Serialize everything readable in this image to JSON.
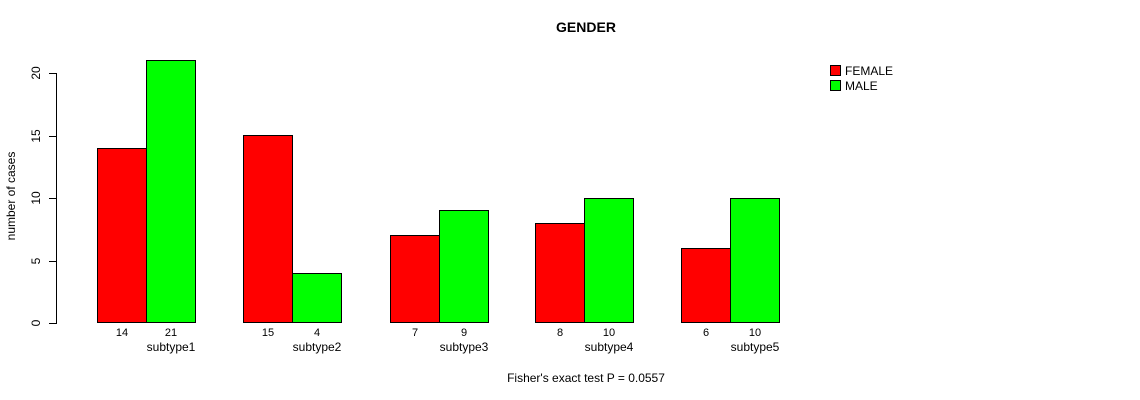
{
  "chart_data": {
    "type": "bar",
    "title": "GENDER",
    "xlabel": "",
    "ylabel": "number of cases",
    "categories": [
      "subtype1",
      "subtype2",
      "subtype3",
      "subtype4",
      "subtype5"
    ],
    "series": [
      {
        "name": "FEMALE",
        "color": "#ff0000",
        "values": [
          14,
          15,
          7,
          8,
          6
        ]
      },
      {
        "name": "MALE",
        "color": "#00ff00",
        "values": [
          21,
          4,
          9,
          10,
          10
        ]
      }
    ],
    "value_labels": [
      [
        14,
        21
      ],
      [
        15,
        4
      ],
      [
        7,
        9
      ],
      [
        8,
        10
      ],
      [
        6,
        10
      ]
    ],
    "yticks": [
      0,
      5,
      10,
      15,
      20
    ],
    "ylim": [
      0,
      21
    ],
    "grid": false,
    "legend_position": "right",
    "bar_outline_color": "#000000",
    "annotation": "Fisher's exact test P = 0.0557"
  }
}
